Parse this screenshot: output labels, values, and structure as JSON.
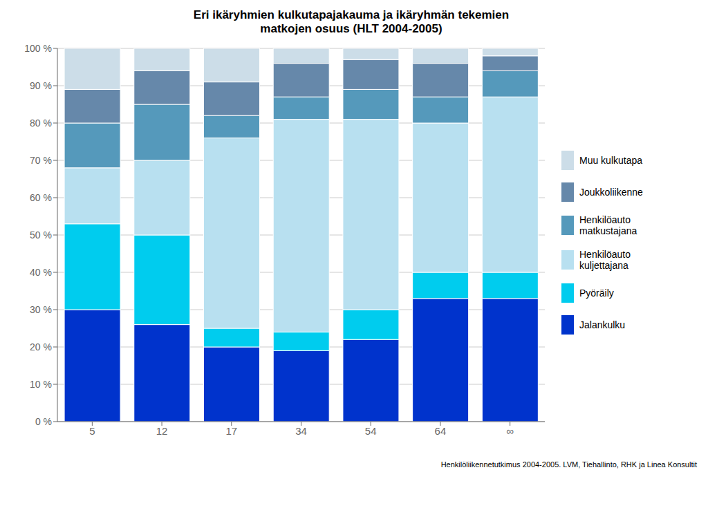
{
  "chart_data": {
    "type": "bar",
    "title": "Eri ikäryhmien kulkutapajakauma ja ikäryhmän tekemien\nmatkojen osuus (HLT 2004-2005)",
    "categories": [
      "5",
      "12",
      "17",
      "34",
      "54",
      "64",
      "∞"
    ],
    "series": [
      {
        "name": "Jalankulku",
        "color": "#0033CC",
        "values": [
          30,
          26,
          20,
          19,
          22,
          33,
          33
        ]
      },
      {
        "name": "Pyöräily",
        "color": "#00CCEE",
        "values": [
          23,
          24,
          5,
          5,
          8,
          7,
          7
        ]
      },
      {
        "name": "Henkilöauto\nkuljettajana",
        "color": "#B8E0F0",
        "values": [
          15,
          20,
          51,
          57,
          51,
          40,
          47
        ]
      },
      {
        "name": "Henkilöauto\nmatkustajana",
        "color": "#5599BB",
        "values": [
          12,
          15,
          6,
          6,
          8,
          7,
          7
        ]
      },
      {
        "name": "Joukkoliikenne",
        "color": "#6688AA",
        "values": [
          9,
          9,
          9,
          9,
          8,
          9,
          4
        ]
      },
      {
        "name": "Muu kulkutapa",
        "color": "#CCDDE8",
        "values": [
          11,
          6,
          9,
          4,
          3,
          4,
          2
        ]
      }
    ],
    "stacked": true,
    "ylim": [
      0,
      100
    ],
    "yticks": [
      {
        "value": 0,
        "label": "0 %"
      },
      {
        "value": 10,
        "label": "10 %"
      },
      {
        "value": 20,
        "label": "20 %"
      },
      {
        "value": 30,
        "label": "30 %"
      },
      {
        "value": 40,
        "label": "40 %"
      },
      {
        "value": 50,
        "label": "50 %"
      },
      {
        "value": 60,
        "label": "60 %"
      },
      {
        "value": 70,
        "label": "70 %"
      },
      {
        "value": 80,
        "label": "80 %"
      },
      {
        "value": 90,
        "label": "90 %"
      },
      {
        "value": 100,
        "label": "100 %"
      }
    ],
    "grid": true,
    "annotations": [
      "Henkilöliikennetutkimus 2004-2005. LVM, Tiehallinto, RHK ja Linea Konsultit"
    ]
  }
}
